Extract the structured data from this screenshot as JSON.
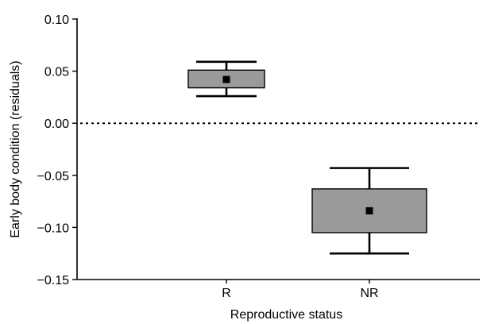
{
  "chart_data": {
    "type": "box",
    "title": "",
    "xlabel": "Reproductive status",
    "ylabel": "Early body condition (residuals)",
    "categories": [
      "R",
      "NR"
    ],
    "ylim": [
      -0.15,
      0.1
    ],
    "yticks": [
      0.1,
      0.05,
      0.0,
      -0.05,
      -0.1,
      -0.15
    ],
    "ytick_labels": [
      "0.10",
      "0.05",
      "0.00",
      "−0.05",
      "−0.10",
      "−0.15"
    ],
    "reference_line": {
      "y": 0.0,
      "style": "dotted"
    },
    "boxes": [
      {
        "category": "R",
        "mean": 0.042,
        "box_low": 0.034,
        "box_high": 0.051,
        "whisker_low": 0.026,
        "whisker_high": 0.059
      },
      {
        "category": "NR",
        "mean": -0.084,
        "box_low": -0.105,
        "box_high": -0.063,
        "whisker_low": -0.125,
        "whisker_high": -0.043
      }
    ],
    "grid": false,
    "colors": {
      "box_fill": "#9a9a9a",
      "stroke": "#000000"
    }
  }
}
